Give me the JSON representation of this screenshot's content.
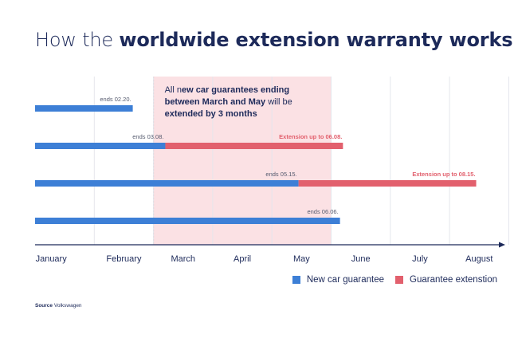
{
  "title_prefix": "How the ",
  "title_bold": "worldwide extension warranty works",
  "chart_data": {
    "type": "bar",
    "subtype": "horizontal-timeline",
    "x_categories": [
      "January",
      "February",
      "March",
      "April",
      "May",
      "June",
      "July",
      "August"
    ],
    "highlight": {
      "from_month": 2.0,
      "to_month": 5.0,
      "color": "#fbe1e4",
      "border_color": "#e8a1aa",
      "text_prefix": "All n",
      "text_bold1": "ew car guarantees ending",
      "text_bold2": "between March and May",
      "text_mid": " will be",
      "text_bold3": "extended by 3 months"
    },
    "series": [
      {
        "name": "New car guarantee",
        "color": "#3d7fd6"
      },
      {
        "name": "Guarantee extenstion",
        "color": "#e2606d"
      }
    ],
    "rows": [
      {
        "end": 1.65,
        "end_label": "ends 02.20.",
        "ext_end": null,
        "ext_label": ""
      },
      {
        "end": 2.2,
        "end_label": "ends 03.08.",
        "ext_end": 5.2,
        "ext_label": "Extension up to 06.08."
      },
      {
        "end": 4.45,
        "end_label": "ends 05.15.",
        "ext_end": 7.45,
        "ext_label": "Extension up to 08.15."
      },
      {
        "end": 5.15,
        "end_label": "ends 06.06.",
        "ext_end": null,
        "ext_label": ""
      }
    ],
    "grid": true,
    "legend_position": "bottom-right"
  },
  "legend": {
    "new_car": "New car guarantee",
    "extension": "Guarantee extenstion"
  },
  "source": {
    "label": "Source",
    "value": "Volkswagen"
  },
  "colors": {
    "title": "#1d2a5a",
    "new_car": "#3d7fd6",
    "extension": "#e2606d",
    "axis": "#1d2a5a",
    "grid": "#e4e6ec"
  }
}
